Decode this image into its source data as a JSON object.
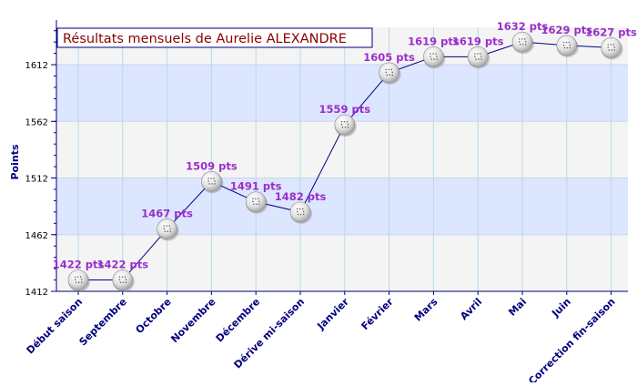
{
  "chart_data": {
    "type": "line",
    "title": "Résultats mensuels de Aurelie ALEXANDRE",
    "ylabel": "Points",
    "xlabel": "",
    "categories": [
      "Début saison",
      "Septembre",
      "Octobre",
      "Novembre",
      "Décembre",
      "Dérive mi-saison",
      "Janvier",
      "Février",
      "Mars",
      "Avril",
      "Mai",
      "Juin",
      "Correction fin-saison"
    ],
    "values": [
      1422,
      1422,
      1467,
      1509,
      1491,
      1482,
      1559,
      1605,
      1619,
      1619,
      1632,
      1629,
      1627
    ],
    "data_labels": [
      "1422 pts",
      "1422 pts",
      "1467 pts",
      "1509 pts",
      "1491 pts",
      "1482 pts",
      "1559 pts",
      "1605 pts",
      "1619 pts",
      "1619 pts",
      "1632 pts",
      "1629 pts",
      "1627 pts"
    ],
    "yticks": [
      1412,
      1462,
      1512,
      1562,
      1612
    ],
    "ylim": [
      1412,
      1645
    ],
    "grid": true,
    "legend": "none",
    "colors": {
      "line": "#000080",
      "label": "#9a2ecb",
      "title_text": "#8b0000",
      "title_border": "#000080",
      "axis": "#000080",
      "band_blue": "#dde6ff",
      "band_gray": "#f4f4f4",
      "grid": "#b8d8ec",
      "marker": "#e6e6e6"
    }
  }
}
